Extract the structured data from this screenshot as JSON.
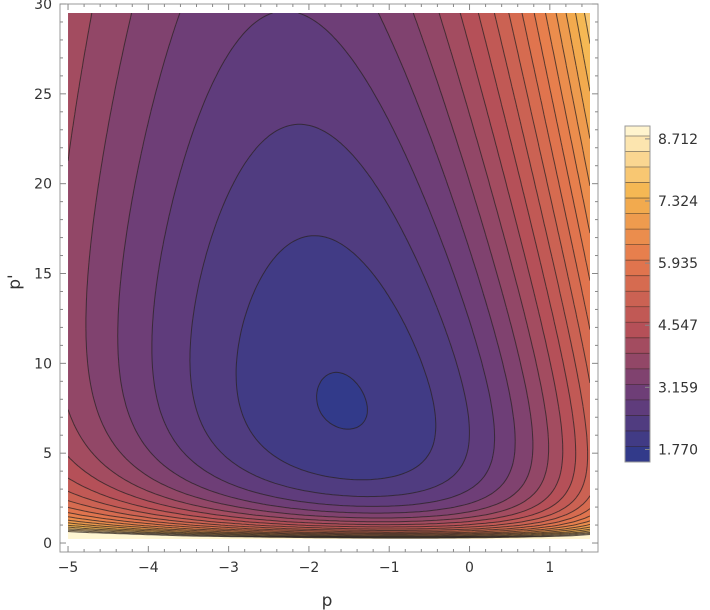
{
  "chart_data": {
    "type": "heatmap",
    "subtype": "contour",
    "title": "",
    "xlabel": "p",
    "ylabel": "p'",
    "xlim": [
      -5.1,
      1.6
    ],
    "ylim": [
      -0.5,
      30
    ],
    "x_ticks": [
      -5,
      -4,
      -3,
      -2,
      -1,
      0,
      1
    ],
    "x_tick_labels": [
      "−5",
      "−4",
      "−3",
      "−2",
      "−1",
      "0",
      "1"
    ],
    "y_ticks": [
      0,
      5,
      10,
      15,
      20,
      25,
      30
    ],
    "y_tick_labels": [
      "0",
      "5",
      "10",
      "15",
      "20",
      "25",
      "30"
    ],
    "data_region": {
      "x": [
        -5,
        1.5
      ],
      "y": [
        0.2,
        29.5
      ]
    },
    "minimum": {
      "x": -1.2,
      "y": 7.5,
      "value": 1.5
    },
    "colorbar": {
      "min": 1.49,
      "max": 9.0,
      "step": 0.347,
      "tick_values": [
        1.77,
        3.159,
        4.547,
        5.935,
        7.324,
        8.712
      ],
      "tick_labels": [
        "1.770",
        "3.159",
        "4.547",
        "5.935",
        "7.324",
        "8.712"
      ],
      "colors": [
        "#2b3a8c",
        "#6b3d78",
        "#b85157",
        "#e5784d",
        "#f5b54e",
        "#fff6d2"
      ]
    },
    "grid": false,
    "legend_position": "right"
  }
}
